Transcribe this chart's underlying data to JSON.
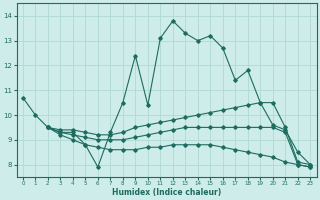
{
  "title": "",
  "xlabel": "Humidex (Indice chaleur)",
  "xlim": [
    -0.5,
    23.5
  ],
  "ylim": [
    7.5,
    14.5
  ],
  "yticks": [
    8,
    9,
    10,
    11,
    12,
    13,
    14
  ],
  "xticks": [
    0,
    1,
    2,
    3,
    4,
    5,
    6,
    7,
    8,
    9,
    10,
    11,
    12,
    13,
    14,
    15,
    16,
    17,
    18,
    19,
    20,
    21,
    22,
    23
  ],
  "bg_color": "#cdecea",
  "line_color": "#1e6b60",
  "grid_color": "#b0d8d4",
  "lines": [
    {
      "x": [
        0,
        1,
        2,
        3,
        4,
        5,
        6,
        7,
        8,
        9,
        10,
        11,
        12,
        13,
        14,
        15,
        16,
        17,
        18,
        19,
        20,
        21,
        22,
        23
      ],
      "y": [
        10.7,
        10.0,
        9.5,
        9.3,
        9.3,
        8.8,
        7.9,
        9.3,
        10.5,
        12.4,
        10.4,
        13.1,
        13.8,
        13.3,
        13.0,
        13.2,
        12.7,
        11.4,
        11.8,
        10.5,
        9.6,
        9.4,
        8.5,
        8.0
      ]
    },
    {
      "x": [
        2,
        3,
        4,
        5,
        6,
        7,
        8,
        9,
        10,
        11,
        12,
        13,
        14,
        15,
        16,
        17,
        18,
        19,
        20,
        21,
        22,
        23
      ],
      "y": [
        9.5,
        9.4,
        9.4,
        9.3,
        9.2,
        9.2,
        9.3,
        9.5,
        9.6,
        9.7,
        9.8,
        9.9,
        10.0,
        10.1,
        10.2,
        10.3,
        10.4,
        10.5,
        10.5,
        9.5,
        8.1,
        8.0
      ]
    },
    {
      "x": [
        2,
        3,
        4,
        5,
        6,
        7,
        8,
        9,
        10,
        11,
        12,
        13,
        14,
        15,
        16,
        17,
        18,
        19,
        20,
        21,
        22,
        23
      ],
      "y": [
        9.5,
        9.3,
        9.2,
        9.1,
        9.0,
        9.0,
        9.0,
        9.1,
        9.2,
        9.3,
        9.4,
        9.5,
        9.5,
        9.5,
        9.5,
        9.5,
        9.5,
        9.5,
        9.5,
        9.3,
        8.0,
        7.9
      ]
    },
    {
      "x": [
        2,
        3,
        4,
        5,
        6,
        7,
        8,
        9,
        10,
        11,
        12,
        13,
        14,
        15,
        16,
        17,
        18,
        19,
        20,
        21,
        22,
        23
      ],
      "y": [
        9.5,
        9.2,
        9.0,
        8.8,
        8.7,
        8.6,
        8.6,
        8.6,
        8.7,
        8.7,
        8.8,
        8.8,
        8.8,
        8.8,
        8.7,
        8.6,
        8.5,
        8.4,
        8.3,
        8.1,
        8.0,
        7.9
      ]
    }
  ]
}
